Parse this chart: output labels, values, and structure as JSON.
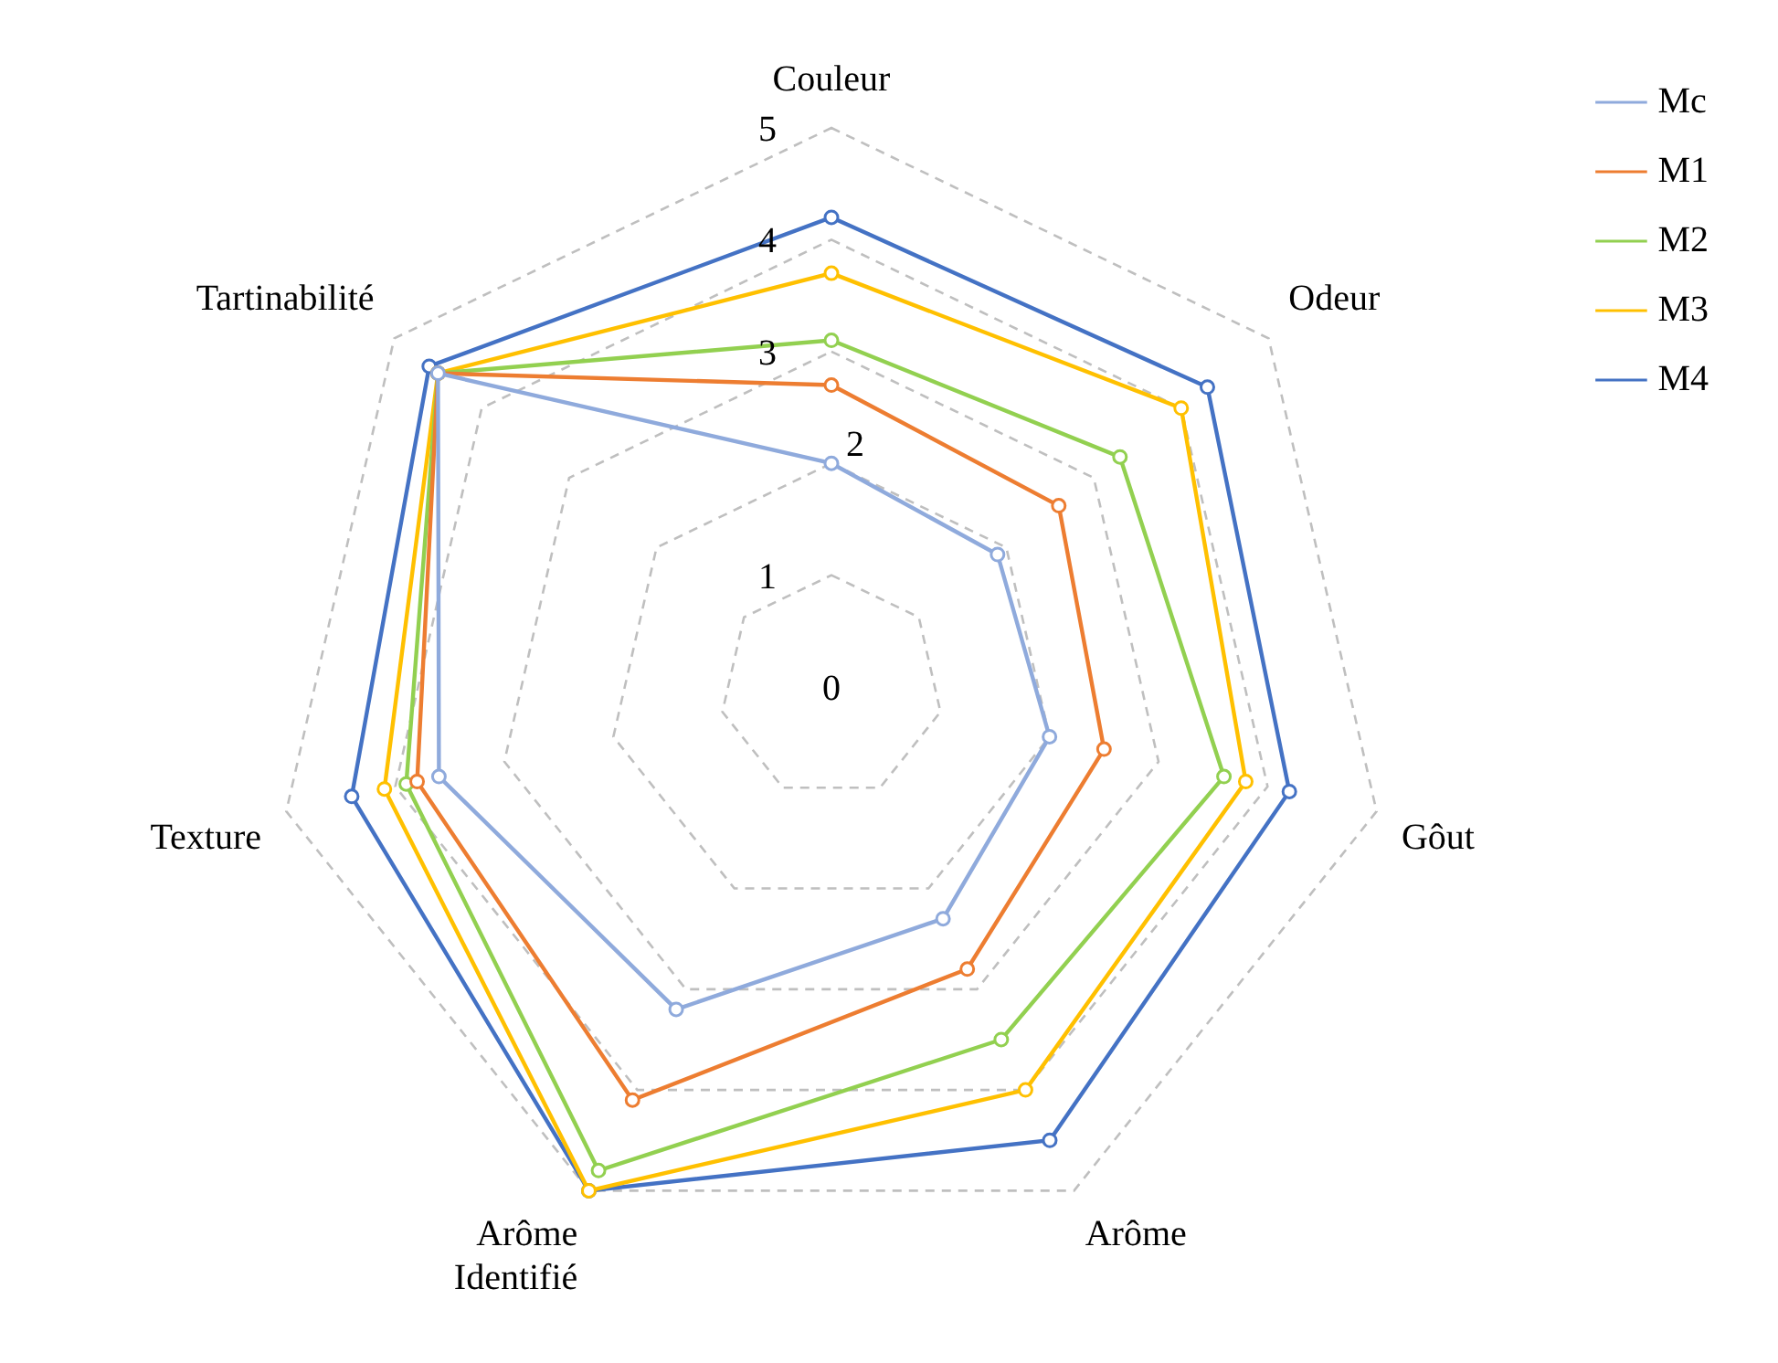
{
  "chart_data": {
    "type": "radar",
    "categories": [
      "Couleur",
      "Odeur",
      "Gôut",
      "Arôme",
      "Arôme Identifié",
      "Texture",
      "Tartinabilité"
    ],
    "series": [
      {
        "name": "Mc",
        "color": "#8faadc",
        "values": [
          2.0,
          1.9,
          2.0,
          2.3,
          3.2,
          3.6,
          4.5
        ]
      },
      {
        "name": "M1",
        "color": "#ed7d31",
        "values": [
          2.7,
          2.6,
          2.5,
          2.8,
          4.1,
          3.8,
          4.5
        ]
      },
      {
        "name": "M2",
        "color": "#92d050",
        "values": [
          3.1,
          3.3,
          3.6,
          3.5,
          4.8,
          3.9,
          4.5
        ]
      },
      {
        "name": "M3",
        "color": "#ffc000",
        "values": [
          3.7,
          4.0,
          3.8,
          4.0,
          5.0,
          4.1,
          4.5
        ]
      },
      {
        "name": "M4",
        "color": "#4472c4",
        "values": [
          4.2,
          4.3,
          4.2,
          4.5,
          5.0,
          4.4,
          4.6
        ]
      }
    ],
    "ylim": [
      0,
      5
    ],
    "yticks": [
      0,
      1,
      2,
      3,
      4,
      5
    ],
    "grid": true,
    "legend": "right",
    "marker": "circle"
  }
}
